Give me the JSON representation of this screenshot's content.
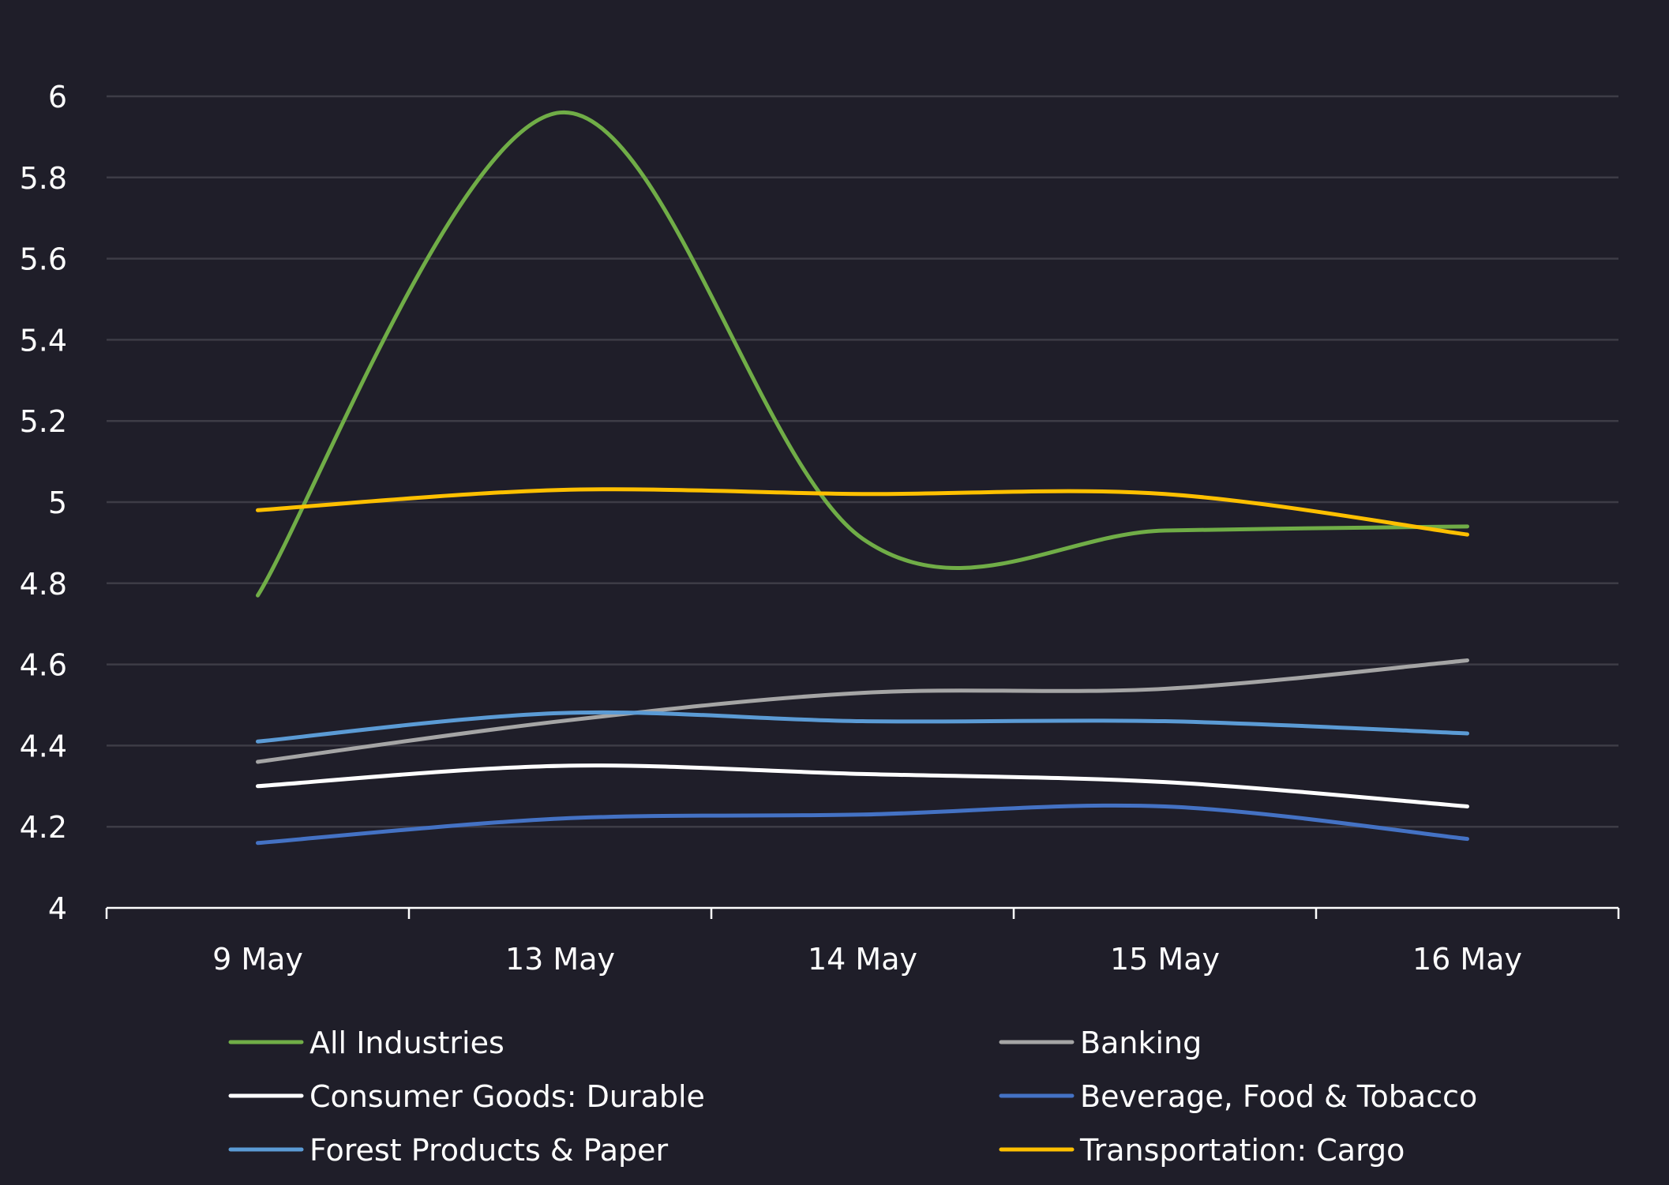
{
  "chart_data": {
    "type": "line",
    "categories": [
      "9 May",
      "13 May",
      "14 May",
      "15 May",
      "16 May"
    ],
    "ylim": [
      4,
      6
    ],
    "yticks": [
      "4",
      "4.2",
      "4.4",
      "4.6",
      "4.8",
      "5",
      "5.2",
      "5.4",
      "5.6",
      "5.8",
      "6"
    ],
    "grid": true,
    "legend_position": "bottom",
    "series": [
      {
        "name": "All Industries",
        "color": "#70ad47",
        "values": [
          4.77,
          5.96,
          4.91,
          4.93,
          4.94
        ]
      },
      {
        "name": "Banking",
        "color": "#a5a5a5",
        "values": [
          4.36,
          4.46,
          4.53,
          4.54,
          4.61
        ]
      },
      {
        "name": "Consumer Goods: Durable",
        "color": "#ffffff",
        "values": [
          4.3,
          4.35,
          4.33,
          4.31,
          4.25
        ]
      },
      {
        "name": "Beverage, Food & Tobacco",
        "color": "#4472c4",
        "values": [
          4.16,
          4.22,
          4.23,
          4.25,
          4.17
        ]
      },
      {
        "name": "Forest Products & Paper",
        "color": "#5b9bd5",
        "values": [
          4.41,
          4.48,
          4.46,
          4.46,
          4.43
        ]
      },
      {
        "name": "Transportation: Cargo",
        "color": "#ffc000",
        "values": [
          4.98,
          5.03,
          5.02,
          5.02,
          4.92
        ]
      }
    ]
  }
}
